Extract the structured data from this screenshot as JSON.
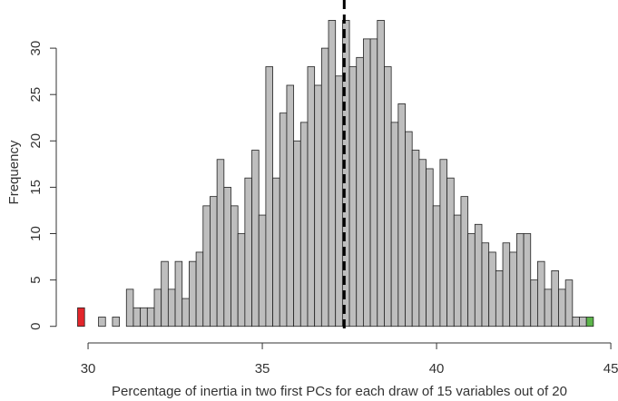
{
  "chart_data": {
    "type": "histogram",
    "xlabel": "Percentage of inertia in two first PCs for each draw of 15 variables out of 20",
    "ylabel": "Frequency",
    "bins": [
      29.7,
      29.9,
      30.1,
      30.3,
      30.5,
      30.7,
      30.9,
      31.1,
      31.3,
      31.5,
      31.7,
      31.9,
      32.1,
      32.3,
      32.5,
      32.7,
      32.9,
      33.1,
      33.3,
      33.5,
      33.7,
      33.9,
      34.1,
      34.3,
      34.5,
      34.7,
      34.9,
      35.1,
      35.3,
      35.5,
      35.7,
      35.9,
      36.1,
      36.3,
      36.5,
      36.7,
      36.9,
      37.1,
      37.3,
      37.5,
      37.7,
      37.9,
      38.1,
      38.3,
      38.5,
      38.7,
      38.9,
      39.1,
      39.3,
      39.5,
      39.7,
      39.9,
      40.1,
      40.3,
      40.5,
      40.7,
      40.9,
      41.1,
      41.3,
      41.5,
      41.7,
      41.9,
      42.1,
      42.3,
      42.5,
      42.7,
      42.9,
      43.1,
      43.3,
      43.5,
      43.7,
      43.9,
      44.1,
      44.3,
      44.5
    ],
    "values": [
      2,
      0,
      0,
      1,
      0,
      1,
      0,
      4,
      2,
      2,
      2,
      4,
      7,
      4,
      7,
      3,
      7,
      8,
      13,
      14,
      18,
      15,
      13,
      10,
      16,
      19,
      12,
      28,
      16,
      23,
      26,
      20,
      22,
      28,
      26,
      30,
      33,
      27,
      33,
      28,
      29,
      31,
      31,
      33,
      28,
      22,
      24,
      21,
      19,
      18,
      17,
      13,
      18,
      16,
      12,
      14,
      10,
      11,
      9,
      8,
      6,
      9,
      8,
      10,
      10,
      5,
      7,
      4,
      6,
      4,
      5,
      1,
      1,
      1
    ],
    "colors": [
      "#e3262b",
      "#bebebe",
      "#bebebe",
      "#bebebe",
      "#bebebe",
      "#bebebe",
      "#bebebe",
      "#bebebe",
      "#bebebe",
      "#bebebe",
      "#bebebe",
      "#bebebe",
      "#bebebe",
      "#bebebe",
      "#bebebe",
      "#bebebe",
      "#bebebe",
      "#bebebe",
      "#bebebe",
      "#bebebe",
      "#bebebe",
      "#bebebe",
      "#bebebe",
      "#bebebe",
      "#bebebe",
      "#bebebe",
      "#bebebe",
      "#bebebe",
      "#bebebe",
      "#bebebe",
      "#bebebe",
      "#bebebe",
      "#bebebe",
      "#bebebe",
      "#bebebe",
      "#bebebe",
      "#bebebe",
      "#bebebe",
      "#bebebe",
      "#bebebe",
      "#bebebe",
      "#bebebe",
      "#bebebe",
      "#bebebe",
      "#bebebe",
      "#bebebe",
      "#bebebe",
      "#bebebe",
      "#bebebe",
      "#bebebe",
      "#bebebe",
      "#bebebe",
      "#bebebe",
      "#bebebe",
      "#bebebe",
      "#bebebe",
      "#bebebe",
      "#bebebe",
      "#bebebe",
      "#bebebe",
      "#bebebe",
      "#bebebe",
      "#bebebe",
      "#bebebe",
      "#bebebe",
      "#bebebe",
      "#bebebe",
      "#bebebe",
      "#bebebe",
      "#bebebe",
      "#bebebe",
      "#bebebe",
      "#bebebe",
      "#5cb54a"
    ],
    "vline": 37.35,
    "xlim": [
      29.4,
      45.05
    ],
    "xticks": [
      30,
      35,
      40,
      45
    ],
    "ylim": [
      -1.3,
      35
    ],
    "yticks": [
      0,
      5,
      10,
      15,
      20,
      25,
      30
    ]
  }
}
